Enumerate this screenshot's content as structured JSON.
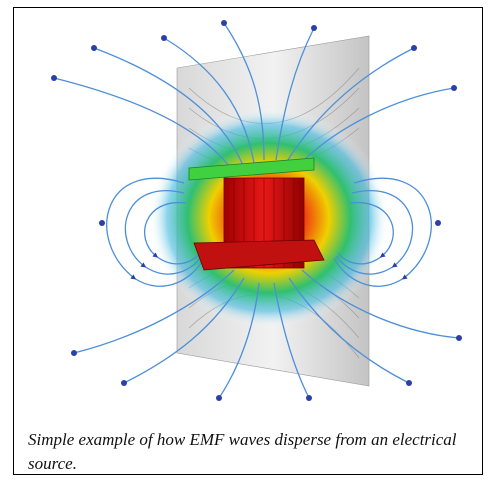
{
  "figure": {
    "caption": "Simple example of how EMF waves disperse from an electrical source."
  },
  "colors": {
    "arrow": "#2b3faa",
    "line": "#4d8fd8",
    "hot": "#d81010",
    "warm": "#f0d000",
    "cool": "#22c08a",
    "plate": "#9a9a9a"
  }
}
